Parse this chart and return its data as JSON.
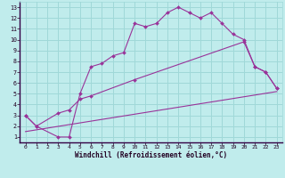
{
  "xlabel": "Windchill (Refroidissement éolien,°C)",
  "background_color": "#c0ecec",
  "grid_color": "#a0d8d8",
  "line_color": "#993399",
  "xlim": [
    -0.5,
    23.5
  ],
  "ylim": [
    0.5,
    13.5
  ],
  "xticks": [
    0,
    1,
    2,
    3,
    4,
    5,
    6,
    7,
    8,
    9,
    10,
    11,
    12,
    13,
    14,
    15,
    16,
    17,
    18,
    19,
    20,
    21,
    22,
    23
  ],
  "yticks": [
    1,
    2,
    3,
    4,
    5,
    6,
    7,
    8,
    9,
    10,
    11,
    12,
    13
  ],
  "line1_x": [
    0,
    1,
    3,
    4,
    5,
    6,
    7,
    8,
    9,
    10,
    11,
    12,
    13,
    14,
    15,
    16,
    17,
    18,
    19,
    20,
    21,
    22,
    23
  ],
  "line1_y": [
    3,
    2,
    1,
    1,
    5,
    7.5,
    7.8,
    8.5,
    8.8,
    11.5,
    11.2,
    11.5,
    12.5,
    13,
    12.5,
    12,
    12.5,
    11.5,
    10.5,
    10,
    7.5,
    7,
    5.5
  ],
  "line2_x": [
    0,
    1,
    3,
    4,
    5,
    6,
    10,
    20,
    21,
    22,
    23
  ],
  "line2_y": [
    3,
    2,
    3.2,
    3.5,
    4.5,
    4.8,
    6.3,
    9.8,
    7.5,
    7.0,
    5.5
  ],
  "line3_x": [
    0,
    23
  ],
  "line3_y": [
    1.5,
    5.2
  ],
  "xlabel_fontsize": 5.5,
  "tick_fontsize": 4.5
}
